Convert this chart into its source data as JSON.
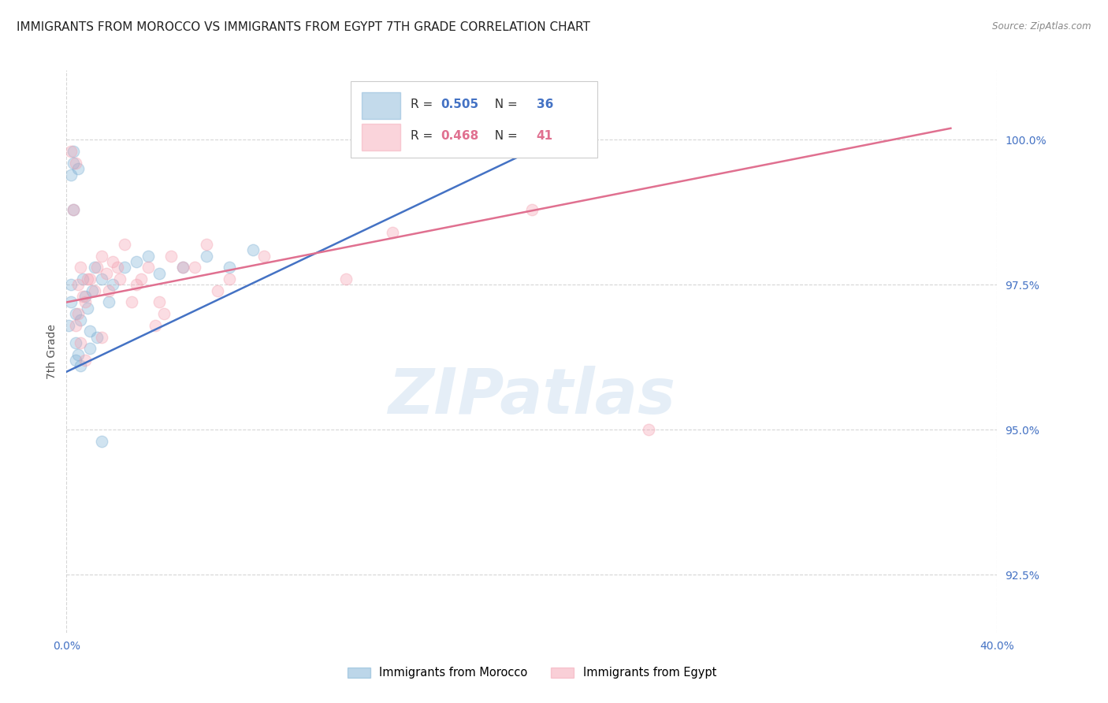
{
  "title": "IMMIGRANTS FROM MOROCCO VS IMMIGRANTS FROM EGYPT 7TH GRADE CORRELATION CHART",
  "source": "Source: ZipAtlas.com",
  "watermark": "ZIPatlas",
  "ylabel": "7th Grade",
  "xlim": [
    0.0,
    40.0
  ],
  "ylim": [
    91.5,
    101.2
  ],
  "yticks": [
    92.5,
    95.0,
    97.5,
    100.0
  ],
  "xticks": [
    0.0,
    40.0
  ],
  "morocco_color": "#7bafd4",
  "egypt_color": "#f4a0b0",
  "morocco_R": 0.505,
  "morocco_N": 36,
  "egypt_R": 0.468,
  "egypt_N": 41,
  "morocco_scatter_x": [
    0.1,
    0.2,
    0.2,
    0.3,
    0.3,
    0.4,
    0.4,
    0.5,
    0.5,
    0.6,
    0.7,
    0.8,
    0.9,
    1.0,
    1.1,
    1.2,
    1.5,
    1.8,
    2.0,
    2.5,
    3.0,
    3.5,
    4.0,
    5.0,
    6.0,
    7.0,
    8.0,
    0.2,
    0.3,
    0.4,
    0.6,
    1.0,
    1.3,
    13.5,
    21.5,
    1.5
  ],
  "morocco_scatter_y": [
    96.8,
    97.5,
    97.2,
    99.8,
    99.6,
    97.0,
    96.5,
    96.3,
    99.5,
    96.9,
    97.6,
    97.3,
    97.1,
    96.7,
    97.4,
    97.8,
    97.6,
    97.2,
    97.5,
    97.8,
    97.9,
    98.0,
    97.7,
    97.8,
    98.0,
    97.8,
    98.1,
    99.4,
    98.8,
    96.2,
    96.1,
    96.4,
    96.6,
    99.8,
    100.0,
    94.8
  ],
  "egypt_scatter_x": [
    0.2,
    0.4,
    0.5,
    0.6,
    0.8,
    1.0,
    1.2,
    1.5,
    1.7,
    2.0,
    2.3,
    2.5,
    3.0,
    3.5,
    4.0,
    4.5,
    5.0,
    6.0,
    7.0,
    0.3,
    0.5,
    0.7,
    0.9,
    1.3,
    1.8,
    2.2,
    3.2,
    4.2,
    5.5,
    6.5,
    8.5,
    14.0,
    20.0,
    25.0,
    12.0,
    0.4,
    0.6,
    0.8,
    1.5,
    2.8,
    3.8
  ],
  "egypt_scatter_y": [
    99.8,
    99.6,
    97.5,
    97.8,
    97.2,
    97.6,
    97.4,
    98.0,
    97.7,
    97.9,
    97.6,
    98.2,
    97.5,
    97.8,
    97.2,
    98.0,
    97.8,
    98.2,
    97.6,
    98.8,
    97.0,
    97.3,
    97.6,
    97.8,
    97.4,
    97.8,
    97.6,
    97.0,
    97.8,
    97.4,
    98.0,
    98.4,
    98.8,
    95.0,
    97.6,
    96.8,
    96.5,
    96.2,
    96.6,
    97.2,
    96.8
  ],
  "morocco_trend_x": [
    0.0,
    22.0
  ],
  "morocco_trend_y": [
    96.0,
    100.2
  ],
  "egypt_trend_x": [
    0.0,
    38.0
  ],
  "egypt_trend_y": [
    97.2,
    100.2
  ],
  "background_color": "#ffffff",
  "grid_color": "#cccccc",
  "tick_color": "#4472c4",
  "title_fontsize": 11,
  "axis_label_fontsize": 10,
  "tick_fontsize": 10,
  "legend_fontsize": 11,
  "marker_size": 110,
  "marker_alpha": 0.35,
  "marker_linewidth": 1.0
}
